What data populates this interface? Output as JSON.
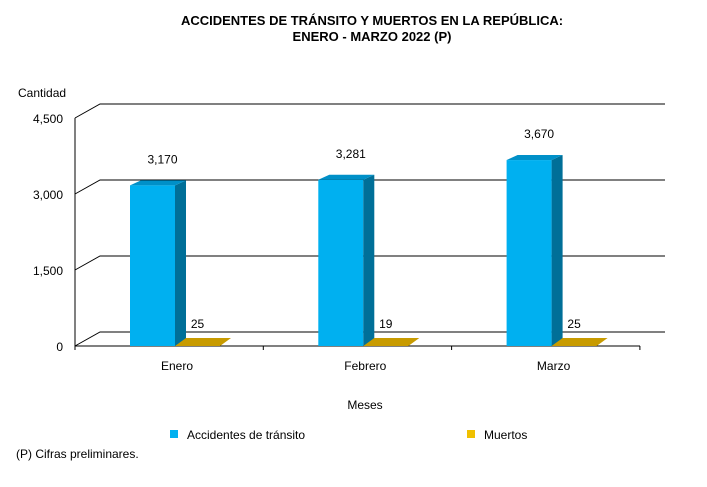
{
  "chart_data": {
    "type": "bar",
    "title": "ACCIDENTES DE TRÁNSITO Y MUERTOS EN LA REPÚBLICA:",
    "subtitle": "ENERO - MARZO 2022 (P)",
    "xlabel": "Meses",
    "ylabel": "Cantidad",
    "ylim": [
      0,
      4500
    ],
    "yticks": [
      0,
      1500,
      3000,
      4500
    ],
    "ytick_labels": [
      "0",
      "1,500",
      "3,000",
      "4,500"
    ],
    "categories": [
      "Enero",
      "Febrero",
      "Marzo"
    ],
    "series": [
      {
        "name": "Accidentes de tránsito",
        "values": [
          3170,
          3281,
          3670
        ],
        "labels": [
          "3,170",
          "3,281",
          "3,670"
        ],
        "color": "#00b0f0",
        "side": "#006f98"
      },
      {
        "name": "Muertos",
        "values": [
          25,
          19,
          25
        ],
        "labels": [
          "25",
          "19",
          "25"
        ],
        "color": "#c89b00",
        "side": "#8a6a00"
      }
    ],
    "grid": true,
    "legend_position": "bottom",
    "footnote": "(P) Cifras preliminares."
  }
}
